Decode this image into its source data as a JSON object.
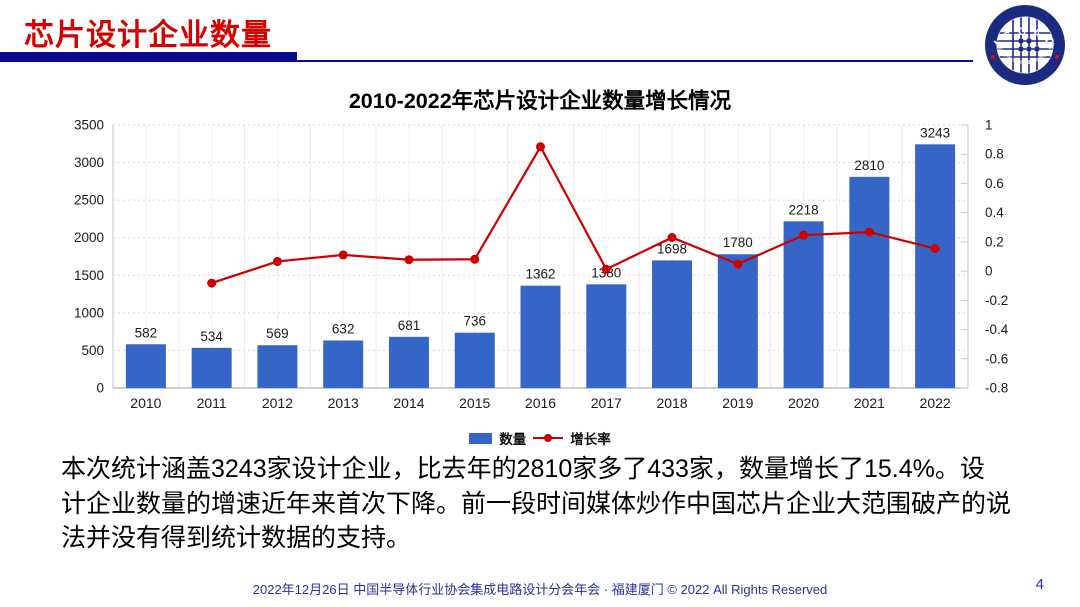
{
  "header": {
    "title": "芯片设计企业数量"
  },
  "logo": {
    "ring_text_top": "I C C A D",
    "ring_text_bottom": "中国半导体行业协会集成电路设计分会"
  },
  "theme": {
    "header_red": "#D40000",
    "navy": "#0A0A8C",
    "footer_blue": "#27339B",
    "bar_blue": "#3565C6",
    "line_red": "#CC0000"
  },
  "chart_data": {
    "type": "bar",
    "title": "2010-2022年芯片设计企业数量增长情况",
    "categories": [
      "2010",
      "2011",
      "2012",
      "2013",
      "2014",
      "2015",
      "2016",
      "2017",
      "2018",
      "2019",
      "2020",
      "2021",
      "2022"
    ],
    "series": [
      {
        "name": "数量",
        "type": "bar",
        "color": "#3565C6",
        "values": [
          582,
          534,
          569,
          632,
          681,
          736,
          1362,
          1380,
          1698,
          1780,
          2218,
          2810,
          3243
        ]
      },
      {
        "name": "增长率",
        "type": "line",
        "color": "#CC0000",
        "values": [
          null,
          -0.082,
          0.066,
          0.111,
          0.078,
          0.081,
          0.851,
          0.013,
          0.23,
          0.048,
          0.246,
          0.267,
          0.154
        ]
      }
    ],
    "left_axis": {
      "min": 0,
      "max": 3500,
      "step": 500,
      "ticks": [
        "3500",
        "3000",
        "2500",
        "2000",
        "1500",
        "1000",
        "500",
        "0"
      ]
    },
    "right_axis": {
      "min": -0.8,
      "max": 1,
      "step": 0.2,
      "ticks": [
        "1",
        "0.8",
        "0.6",
        "0.4",
        "0.2",
        "0",
        "-0.2",
        "-0.4",
        "-0.6",
        "-0.8"
      ]
    },
    "legend_position": "bottom",
    "grid": true
  },
  "body": {
    "lines": [
      "本次统计涵盖3243家设计企业，比去年的2810家多了433家，数量增长了15.4%。设",
      "计企业数量的增速近年来首次下降。前一段时间媒体炒作中国芯片企业大范围破产的说",
      "法并没有得到统计数据的支持。"
    ]
  },
  "footer": {
    "text": "2022年12月26日 中国半导体行业协会集成电路设计分会年会 · 福建厦门 © 2022 All Rights Reserved",
    "page": "4"
  }
}
